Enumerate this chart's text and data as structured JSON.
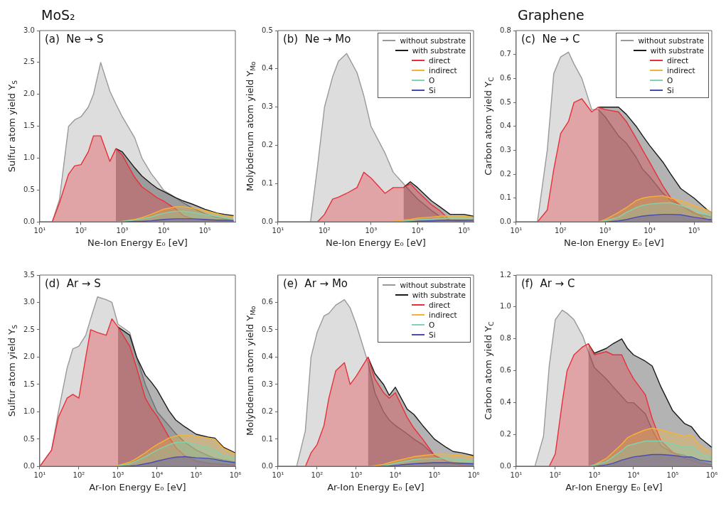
{
  "chart_data": [
    {
      "type": "area",
      "title": "(a)  Ne → S",
      "annotations": [
        "MoS₂"
      ],
      "xlabel": "Ne-Ion Energy E₀ [eV]",
      "ylabel": "Sulfur atom yield Y$_{S}$",
      "log": "x",
      "xlim": [
        10,
        550000
      ],
      "xticks": [
        {
          "value": 10,
          "label": "10¹"
        },
        {
          "value": 100,
          "label": "10²"
        },
        {
          "value": 1000,
          "label": "10³"
        },
        {
          "value": 10000,
          "label": "10⁴"
        },
        {
          "value": 100000,
          "label": "10⁵"
        }
      ],
      "ylim": [
        0,
        3
      ],
      "yticks": [
        {
          "value": 0,
          "label": "0.0"
        },
        0.5,
        {
          "value": 1,
          "label": "1.0"
        },
        1.5,
        {
          "value": 2,
          "label": "2.0"
        },
        2.5,
        {
          "value": 3,
          "label": "3.0"
        }
      ],
      "x": [
        10,
        20,
        30,
        50,
        70,
        100,
        150,
        200,
        300,
        500,
        700,
        1000,
        2000,
        3000,
        5000,
        7000,
        10000,
        20000,
        30000,
        50000,
        100000,
        200000,
        300000,
        500000
      ],
      "series": [
        {
          "color": "#999999",
          "values": [
            0,
            0,
            0.35,
            1.5,
            1.6,
            1.65,
            1.8,
            2.0,
            2.5,
            2.05,
            1.85,
            1.65,
            1.32,
            1.0,
            0.76,
            0.64,
            0.5,
            0.38,
            0.3,
            0.22,
            0.13,
            0.07,
            0.05,
            0.03
          ]
        },
        {
          "color": "#1a1a1a",
          "values": [
            null,
            null,
            null,
            null,
            null,
            null,
            null,
            null,
            null,
            null,
            1.15,
            1.1,
            0.85,
            0.72,
            0.6,
            0.53,
            0.48,
            0.38,
            0.33,
            0.28,
            0.2,
            0.14,
            0.12,
            0.1
          ]
        },
        {
          "color": "#e8303a",
          "values": [
            0,
            0,
            0.3,
            0.75,
            0.88,
            0.9,
            1.1,
            1.35,
            1.35,
            0.95,
            1.15,
            1.05,
            0.7,
            0.55,
            0.45,
            0.38,
            0.33,
            0.2,
            0.1,
            0.05,
            0.03,
            0.02,
            0.01,
            0.01
          ]
        },
        {
          "color": "#f5b335",
          "values": [
            0,
            0,
            0,
            0,
            0,
            0,
            0,
            0,
            0,
            0,
            0,
            0.01,
            0.04,
            0.07,
            0.12,
            0.16,
            0.2,
            0.24,
            0.24,
            0.22,
            0.18,
            0.13,
            0.1,
            0.08
          ]
        },
        {
          "color": "#7fd3b0",
          "values": [
            0,
            0,
            0,
            0,
            0,
            0,
            0,
            0,
            0,
            0,
            0,
            0.01,
            0.03,
            0.05,
            0.08,
            0.11,
            0.14,
            0.17,
            0.17,
            0.15,
            0.12,
            0.09,
            0.07,
            0.05
          ]
        },
        {
          "color": "#4a4ab0",
          "values": [
            0,
            0,
            0,
            0,
            0,
            0,
            0,
            0,
            0,
            0,
            0,
            0,
            0.01,
            0.01,
            0.02,
            0.03,
            0.04,
            0.05,
            0.05,
            0.05,
            0.04,
            0.03,
            0.03,
            0.02
          ]
        }
      ]
    },
    {
      "type": "area",
      "title": "(b)  Ne → Mo",
      "xlabel": "Ne-Ion Energy E₀ [eV]",
      "ylabel": "Molybdenum atom yield Y$_{Mo}$",
      "log": "x",
      "legend": "top right",
      "xlim": [
        10,
        160000
      ],
      "xticks": [
        {
          "value": 10,
          "label": "10¹"
        },
        {
          "value": 100,
          "label": "10²"
        },
        {
          "value": 1000,
          "label": "10³"
        },
        {
          "value": 10000,
          "label": "10⁴"
        },
        {
          "value": 100000,
          "label": "10⁵"
        }
      ],
      "ylim": [
        0,
        0.5
      ],
      "yticks": [
        {
          "value": 0,
          "label": "0.0"
        },
        0.1,
        0.2,
        0.3,
        0.4,
        0.5
      ],
      "x": [
        10,
        20,
        30,
        50,
        70,
        100,
        150,
        200,
        300,
        500,
        700,
        1000,
        2000,
        3000,
        5000,
        7000,
        10000,
        20000,
        30000,
        50000,
        100000,
        160000
      ],
      "series": [
        {
          "name": "without substrate",
          "color": "#999999",
          "values": [
            0,
            0,
            0,
            0,
            0.14,
            0.3,
            0.38,
            0.42,
            0.44,
            0.39,
            0.33,
            0.25,
            0.18,
            0.13,
            0.1,
            0.08,
            0.06,
            0.03,
            0.015,
            0.005,
            0,
            0
          ]
        },
        {
          "name": "with substrate",
          "color": "#1a1a1a",
          "values": [
            null,
            null,
            null,
            null,
            null,
            null,
            null,
            null,
            null,
            null,
            null,
            null,
            null,
            null,
            0.09,
            0.105,
            0.09,
            0.055,
            0.04,
            0.02,
            0.02,
            0.015
          ]
        },
        {
          "name": "direct",
          "color": "#e8303a",
          "values": [
            0,
            0,
            0,
            0,
            0,
            0.02,
            0.06,
            0.065,
            0.075,
            0.09,
            0.13,
            0.115,
            0.075,
            0.09,
            0.09,
            0.1,
            0.08,
            0.045,
            0.03,
            0.005,
            0.002,
            0
          ]
        },
        {
          "name": "indirect",
          "color": "#f5b335",
          "values": [
            0,
            0,
            0,
            0,
            0,
            0,
            0,
            0,
            0,
            0,
            0,
            0,
            0,
            0.002,
            0.005,
            0.007,
            0.01,
            0.013,
            0.015,
            0.016,
            0.015,
            0.013
          ]
        },
        {
          "name": "O",
          "color": "#7fd3b0",
          "values": [
            0,
            0,
            0,
            0,
            0,
            0,
            0,
            0,
            0,
            0,
            0,
            0,
            0,
            0,
            0.002,
            0.004,
            0.006,
            0.008,
            0.01,
            0.01,
            0.01,
            0.009
          ]
        },
        {
          "name": "Si",
          "color": "#4a4ab0",
          "values": [
            0,
            0,
            0,
            0,
            0,
            0,
            0,
            0,
            0,
            0,
            0,
            0,
            0,
            0,
            0,
            0.001,
            0.002,
            0.003,
            0.004,
            0.005,
            0.005,
            0.005
          ]
        }
      ]
    },
    {
      "type": "area",
      "title": "(c)  Ne → C",
      "annotations": [
        "Graphene"
      ],
      "xlabel": "Ne-Ion Energy E₀ [eV]",
      "ylabel": "Carbon atom yield Y$_{C}$",
      "log": "x",
      "legend": "top right",
      "xlim": [
        10,
        250000
      ],
      "xticks": [
        {
          "value": 10,
          "label": "10¹"
        },
        {
          "value": 100,
          "label": "10²"
        },
        {
          "value": 1000,
          "label": "10³"
        },
        {
          "value": 10000,
          "label": "10⁴"
        },
        {
          "value": 100000,
          "label": "10⁵"
        }
      ],
      "ylim": [
        0,
        0.8
      ],
      "yticks": [
        {
          "value": 0,
          "label": "0.0"
        },
        0.1,
        0.2,
        0.3,
        0.4,
        0.5,
        0.6,
        0.7,
        0.8
      ],
      "x": [
        10,
        20,
        30,
        50,
        70,
        100,
        150,
        200,
        300,
        500,
        700,
        1000,
        2000,
        3000,
        5000,
        7000,
        10000,
        20000,
        30000,
        50000,
        100000,
        200000,
        250000
      ],
      "series": [
        {
          "name": "without substrate",
          "color": "#999999",
          "values": [
            0,
            0,
            0,
            0.3,
            0.62,
            0.69,
            0.71,
            0.66,
            0.6,
            0.47,
            0.47,
            0.44,
            0.36,
            0.33,
            0.27,
            0.22,
            0.19,
            0.12,
            0.09,
            0.07,
            0.035,
            0.025,
            0.02
          ]
        },
        {
          "name": "with substrate",
          "color": "#1a1a1a",
          "values": [
            null,
            null,
            null,
            null,
            null,
            null,
            null,
            null,
            null,
            null,
            0.48,
            0.48,
            0.48,
            0.45,
            0.4,
            0.36,
            0.32,
            0.25,
            0.2,
            0.14,
            0.1,
            0.05,
            0.04
          ]
        },
        {
          "name": "direct",
          "color": "#e8303a",
          "values": [
            0,
            0,
            0,
            0.05,
            0.22,
            0.37,
            0.42,
            0.5,
            0.515,
            0.46,
            0.48,
            0.47,
            0.46,
            0.42,
            0.35,
            0.3,
            0.25,
            0.15,
            0.1,
            0.07,
            0.04,
            0.01,
            0.005
          ]
        },
        {
          "name": "indirect",
          "color": "#f5b335",
          "values": [
            0,
            0,
            0,
            0,
            0,
            0,
            0,
            0,
            0,
            0,
            0,
            0.01,
            0.04,
            0.06,
            0.09,
            0.1,
            0.105,
            0.11,
            0.1,
            0.09,
            0.07,
            0.05,
            0.04
          ]
        },
        {
          "name": "O",
          "color": "#7fd3b0",
          "values": [
            0,
            0,
            0,
            0,
            0,
            0,
            0,
            0,
            0,
            0,
            0,
            0.005,
            0.02,
            0.04,
            0.06,
            0.07,
            0.075,
            0.08,
            0.08,
            0.07,
            0.05,
            0.03,
            0.025
          ]
        },
        {
          "name": "Si",
          "color": "#4a4ab0",
          "values": [
            0,
            0,
            0,
            0,
            0,
            0,
            0,
            0,
            0,
            0,
            0,
            0,
            0.005,
            0.01,
            0.02,
            0.025,
            0.028,
            0.032,
            0.032,
            0.03,
            0.02,
            0.012,
            0.01
          ]
        }
      ]
    },
    {
      "type": "area",
      "title": "(d)  Ar → S",
      "xlabel": "Ar-Ion Energy E₀ [eV]",
      "ylabel": "Sulfur atom yield Y$_{S}$",
      "log": "x",
      "xlim": [
        10,
        1000000
      ],
      "xticks": [
        {
          "value": 10,
          "label": "10¹"
        },
        {
          "value": 100,
          "label": "10²"
        },
        {
          "value": 1000,
          "label": "10³"
        },
        {
          "value": 10000,
          "label": "10⁴"
        },
        {
          "value": 100000,
          "label": "10⁵"
        },
        {
          "value": 1000000,
          "label": "10⁶"
        }
      ],
      "ylim": [
        0,
        3.5
      ],
      "yticks": [
        {
          "value": 0,
          "label": "0.0"
        },
        0.5,
        {
          "value": 1,
          "label": "1.0"
        },
        1.5,
        {
          "value": 2,
          "label": "2.0"
        },
        2.5,
        {
          "value": 3,
          "label": "3.0"
        },
        3.5
      ],
      "x": [
        10,
        20,
        30,
        50,
        70,
        100,
        150,
        200,
        300,
        500,
        700,
        1000,
        2000,
        3000,
        5000,
        7000,
        10000,
        20000,
        30000,
        50000,
        100000,
        200000,
        300000,
        500000,
        1000000
      ],
      "series": [
        {
          "color": "#999999",
          "values": [
            0,
            0.3,
            1.0,
            1.8,
            2.15,
            2.2,
            2.4,
            2.7,
            3.1,
            3.05,
            3.0,
            2.6,
            2.45,
            2.0,
            1.5,
            1.25,
            1.0,
            0.75,
            0.6,
            0.45,
            0.3,
            0.2,
            0.15,
            0.12,
            0.08
          ]
        },
        {
          "color": "#1a1a1a",
          "values": [
            null,
            null,
            null,
            null,
            null,
            null,
            null,
            null,
            null,
            null,
            null,
            2.55,
            2.4,
            2.0,
            1.67,
            1.55,
            1.4,
            1.02,
            0.85,
            0.73,
            0.59,
            0.54,
            0.52,
            0.35,
            0.25
          ]
        },
        {
          "color": "#e8303a",
          "values": [
            0,
            0.3,
            0.9,
            1.25,
            1.32,
            1.25,
            2.0,
            2.5,
            2.45,
            2.4,
            2.7,
            2.55,
            2.2,
            1.8,
            1.25,
            1.07,
            0.92,
            0.54,
            0.35,
            0.2,
            0.1,
            0.06,
            0.05,
            0.04,
            0.02
          ]
        },
        {
          "color": "#f5b335",
          "values": [
            0,
            0,
            0,
            0,
            0,
            0,
            0,
            0,
            0,
            0,
            0,
            0.02,
            0.08,
            0.15,
            0.25,
            0.33,
            0.4,
            0.52,
            0.56,
            0.58,
            0.55,
            0.52,
            0.5,
            0.33,
            0.23
          ]
        },
        {
          "color": "#7fd3b0",
          "values": [
            0,
            0,
            0,
            0,
            0,
            0,
            0,
            0,
            0,
            0,
            0,
            0.01,
            0.05,
            0.1,
            0.18,
            0.24,
            0.3,
            0.4,
            0.44,
            0.45,
            0.4,
            0.35,
            0.3,
            0.2,
            0.15
          ]
        },
        {
          "color": "#4a4ab0",
          "values": [
            0,
            0,
            0,
            0,
            0,
            0,
            0,
            0,
            0,
            0,
            0,
            0,
            0.01,
            0.02,
            0.05,
            0.07,
            0.1,
            0.15,
            0.17,
            0.18,
            0.16,
            0.15,
            0.13,
            0.1,
            0.07
          ]
        }
      ]
    },
    {
      "type": "area",
      "title": "(e)  Ar → Mo",
      "xlabel": "Ar-Ion Energy E₀ [eV]",
      "ylabel": "Molybdenum atom yield Y$_{Mo}$",
      "log": "x",
      "legend": "top right",
      "xlim": [
        10,
        1000000
      ],
      "xticks": [
        {
          "value": 10,
          "label": "10¹"
        },
        {
          "value": 100,
          "label": "10²"
        },
        {
          "value": 1000,
          "label": "10³"
        },
        {
          "value": 10000,
          "label": "10⁴"
        },
        {
          "value": 100000,
          "label": "10⁵"
        },
        {
          "value": 1000000,
          "label": "10⁶"
        }
      ],
      "ylim": [
        0,
        0.7
      ],
      "yticks": [
        {
          "value": 0,
          "label": "0.0"
        },
        0.1,
        0.2,
        0.3,
        0.4,
        0.5,
        0.6
      ],
      "x": [
        10,
        20,
        30,
        50,
        70,
        100,
        150,
        200,
        300,
        500,
        700,
        1000,
        2000,
        3000,
        5000,
        7000,
        10000,
        20000,
        30000,
        50000,
        100000,
        200000,
        300000,
        500000,
        1000000
      ],
      "series": [
        {
          "name": "without substrate",
          "color": "#999999",
          "values": [
            0,
            0,
            0,
            0.13,
            0.4,
            0.49,
            0.55,
            0.56,
            0.59,
            0.61,
            0.58,
            0.52,
            0.38,
            0.27,
            0.2,
            0.17,
            0.15,
            0.12,
            0.1,
            0.08,
            0.04,
            0.02,
            0.015,
            0.01,
            0.005
          ]
        },
        {
          "name": "with substrate",
          "color": "#1a1a1a",
          "values": [
            null,
            null,
            null,
            null,
            null,
            null,
            null,
            null,
            null,
            null,
            null,
            null,
            0.4,
            0.34,
            0.3,
            0.26,
            0.29,
            0.21,
            0.19,
            0.15,
            0.1,
            0.07,
            0.055,
            0.05,
            0.04
          ]
        },
        {
          "name": "direct",
          "color": "#e8303a",
          "values": [
            0,
            0,
            0,
            0,
            0.05,
            0.08,
            0.15,
            0.25,
            0.35,
            0.38,
            0.3,
            0.33,
            0.4,
            0.32,
            0.27,
            0.25,
            0.27,
            0.18,
            0.14,
            0.1,
            0.04,
            0.02,
            0.01,
            0.005,
            0
          ]
        },
        {
          "name": "indirect",
          "color": "#f5b335",
          "values": [
            0,
            0,
            0,
            0,
            0,
            0,
            0,
            0,
            0,
            0,
            0,
            0,
            0,
            0.003,
            0.008,
            0.014,
            0.02,
            0.03,
            0.036,
            0.04,
            0.045,
            0.045,
            0.042,
            0.04,
            0.035
          ]
        },
        {
          "name": "O",
          "color": "#7fd3b0",
          "values": [
            0,
            0,
            0,
            0,
            0,
            0,
            0,
            0,
            0,
            0,
            0,
            0,
            0,
            0,
            0.003,
            0.007,
            0.012,
            0.02,
            0.025,
            0.028,
            0.03,
            0.03,
            0.028,
            0.025,
            0.02
          ]
        },
        {
          "name": "Si",
          "color": "#4a4ab0",
          "values": [
            0,
            0,
            0,
            0,
            0,
            0,
            0,
            0,
            0,
            0,
            0,
            0,
            0,
            0,
            0.001,
            0.002,
            0.004,
            0.008,
            0.01,
            0.012,
            0.014,
            0.014,
            0.013,
            0.012,
            0.01
          ]
        }
      ]
    },
    {
      "type": "area",
      "title": "(f)  Ar → C",
      "xlabel": "Ar-Ion Energy E₀ [eV]",
      "ylabel": "Carbon atom yield Y$_{C}$",
      "log": "x",
      "xlim": [
        10,
        1000000
      ],
      "xticks": [
        {
          "value": 10,
          "label": "10¹"
        },
        {
          "value": 100,
          "label": "10²"
        },
        {
          "value": 1000,
          "label": "10³"
        },
        {
          "value": 10000,
          "label": "10⁴"
        },
        {
          "value": 100000,
          "label": "10⁵"
        },
        {
          "value": 1000000,
          "label": "10⁶"
        }
      ],
      "ylim": [
        0,
        1.2
      ],
      "yticks": [
        {
          "value": 0,
          "label": "0.0"
        },
        0.2,
        0.4,
        0.6,
        0.8,
        {
          "value": 1,
          "label": "1.0"
        },
        1.2
      ],
      "x": [
        10,
        20,
        30,
        50,
        70,
        100,
        150,
        200,
        300,
        500,
        700,
        1000,
        2000,
        3000,
        5000,
        7000,
        10000,
        20000,
        30000,
        50000,
        100000,
        200000,
        300000,
        500000,
        1000000
      ],
      "series": [
        {
          "color": "#999999",
          "values": [
            0,
            0,
            0,
            0.19,
            0.63,
            0.92,
            0.98,
            0.96,
            0.92,
            0.82,
            0.72,
            0.62,
            0.55,
            0.5,
            0.44,
            0.4,
            0.4,
            0.33,
            0.23,
            0.13,
            0.085,
            0.07,
            0.05,
            0.03,
            0.01
          ]
        },
        {
          "color": "#1a1a1a",
          "values": [
            null,
            null,
            null,
            null,
            null,
            null,
            null,
            null,
            null,
            null,
            0.77,
            0.71,
            0.74,
            0.77,
            0.8,
            0.74,
            0.7,
            0.66,
            0.63,
            0.5,
            0.35,
            0.27,
            0.25,
            0.18,
            0.12
          ]
        },
        {
          "color": "#e8303a",
          "values": [
            0,
            0,
            0,
            0,
            0,
            0.08,
            0.4,
            0.6,
            0.7,
            0.75,
            0.77,
            0.7,
            0.72,
            0.7,
            0.7,
            0.62,
            0.55,
            0.45,
            0.3,
            0.16,
            0.09,
            0.05,
            0.04,
            0.02,
            0.01
          ]
        },
        {
          "color": "#f5b335",
          "values": [
            0,
            0,
            0,
            0,
            0,
            0,
            0,
            0,
            0,
            0,
            0,
            0.01,
            0.05,
            0.09,
            0.14,
            0.18,
            0.2,
            0.23,
            0.24,
            0.23,
            0.21,
            0.19,
            0.2,
            0.13,
            0.09
          ]
        },
        {
          "color": "#7fd3b0",
          "values": [
            0,
            0,
            0,
            0,
            0,
            0,
            0,
            0,
            0,
            0,
            0,
            0.01,
            0.03,
            0.06,
            0.1,
            0.13,
            0.14,
            0.16,
            0.16,
            0.16,
            0.14,
            0.12,
            0.13,
            0.08,
            0.06
          ]
        },
        {
          "color": "#4a4ab0",
          "values": [
            0,
            0,
            0,
            0,
            0,
            0,
            0,
            0,
            0,
            0,
            0,
            0,
            0.01,
            0.02,
            0.04,
            0.05,
            0.06,
            0.07,
            0.075,
            0.075,
            0.07,
            0.06,
            0.06,
            0.04,
            0.03
          ]
        }
      ]
    }
  ]
}
